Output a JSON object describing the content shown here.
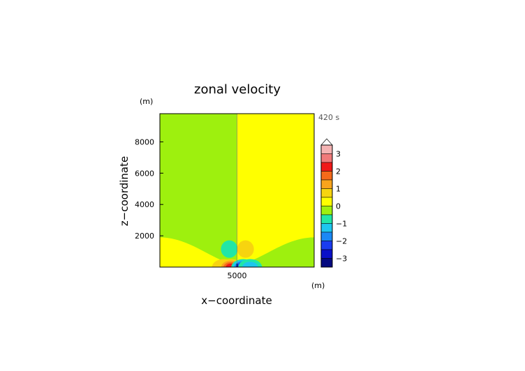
{
  "chart_data": {
    "type": "heatmap",
    "title": "zonal velocity",
    "xlabel": "x−coordinate",
    "ylabel": "z−coordinate",
    "x_unit": "(m)",
    "z_unit": "(m)",
    "time_label": "420 s",
    "xlim": [
      0,
      10000
    ],
    "ylim": [
      0,
      9800
    ],
    "x_ticks": [
      {
        "value": 5000,
        "label": "5000"
      }
    ],
    "y_ticks": [
      {
        "value": 2000,
        "label": "2000"
      },
      {
        "value": 4000,
        "label": "4000"
      },
      {
        "value": 6000,
        "label": "6000"
      },
      {
        "value": 8000,
        "label": "8000"
      }
    ],
    "colorbar": {
      "min": -3.5,
      "max": 3.5,
      "extend": "max",
      "ticks": [
        {
          "value": 3,
          "label": "3"
        },
        {
          "value": 2,
          "label": "2"
        },
        {
          "value": 1,
          "label": "1"
        },
        {
          "value": 0,
          "label": "0"
        },
        {
          "value": -1,
          "label": "−1"
        },
        {
          "value": -2,
          "label": "−2"
        },
        {
          "value": -3,
          "label": "−3"
        }
      ],
      "levels": [
        {
          "from": 3.0,
          "to": 3.5,
          "color": "#f4b3b3"
        },
        {
          "from": 2.5,
          "to": 3.0,
          "color": "#f07a7a"
        },
        {
          "from": 2.0,
          "to": 2.5,
          "color": "#f01818"
        },
        {
          "from": 1.5,
          "to": 2.0,
          "color": "#f56a1a"
        },
        {
          "from": 1.0,
          "to": 1.5,
          "color": "#f9a41c"
        },
        {
          "from": 0.5,
          "to": 1.0,
          "color": "#f7d40f"
        },
        {
          "from": 0.0,
          "to": 0.5,
          "color": "#ffff00"
        },
        {
          "from": -0.5,
          "to": 0.0,
          "color": "#9ef00e"
        },
        {
          "from": -1.0,
          "to": -0.5,
          "color": "#22e6a6"
        },
        {
          "from": -1.5,
          "to": -1.0,
          "color": "#1ec6ee"
        },
        {
          "from": -2.0,
          "to": -1.5,
          "color": "#1a88f5"
        },
        {
          "from": -2.5,
          "to": -2.0,
          "color": "#1a3cf0"
        },
        {
          "from": -3.0,
          "to": -2.5,
          "color": "#0a10c8"
        },
        {
          "from": -3.5,
          "to": -3.0,
          "color": "#050a80"
        }
      ]
    },
    "field": {
      "background_left": -0.25,
      "background_right": 0.25,
      "split_x": 5000,
      "features": [
        {
          "kind": "band",
          "x_start": 0,
          "x_end": 10000,
          "z_edge": 1900,
          "z_center": 200,
          "value_left": 0.25,
          "value_right": -0.25
        },
        {
          "kind": "cell",
          "x": 4500,
          "z": 1150,
          "value": -0.9
        },
        {
          "kind": "cell",
          "x": 5550,
          "z": 1150,
          "value": 0.8
        },
        {
          "kind": "cell",
          "x": 4150,
          "z": 140,
          "value": 0.8
        },
        {
          "kind": "cell",
          "x": 4600,
          "z": 120,
          "value": 2.4
        },
        {
          "kind": "cell",
          "x": 5400,
          "z": 120,
          "value": -3.1
        },
        {
          "kind": "cell",
          "x": 5850,
          "z": 140,
          "value": -1.0
        }
      ]
    }
  }
}
